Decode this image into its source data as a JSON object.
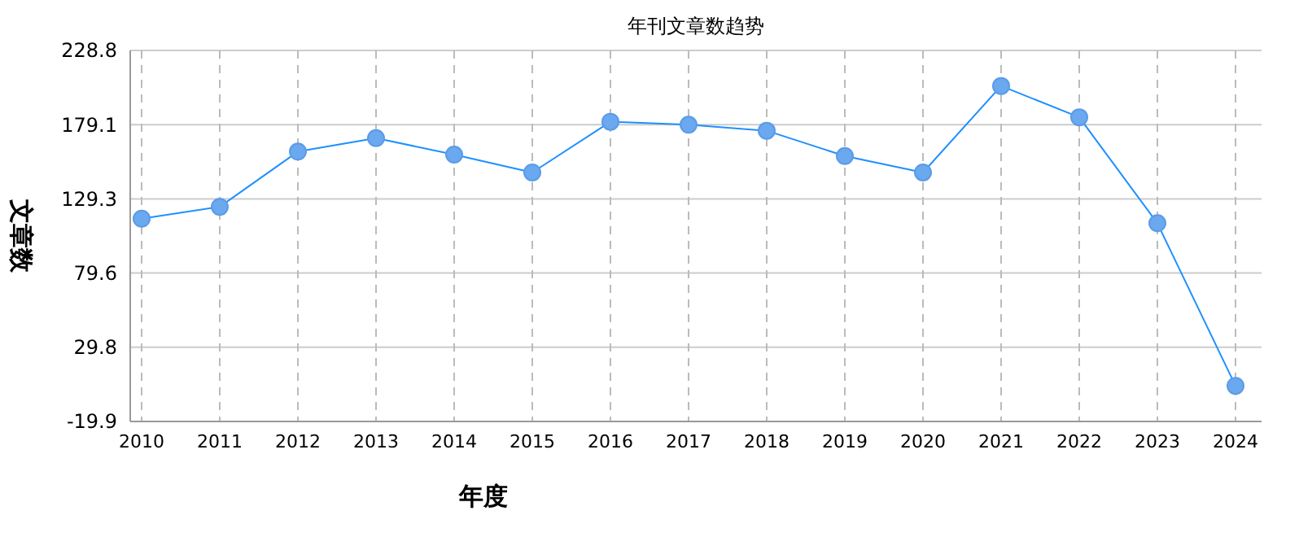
{
  "chart_data": {
    "type": "line",
    "title": "年刊文章数趋势",
    "xlabel": "年度",
    "ylabel": "文章数",
    "categories": [
      "2010",
      "2011",
      "2012",
      "2013",
      "2014",
      "2015",
      "2016",
      "2017",
      "2018",
      "2019",
      "2020",
      "2021",
      "2022",
      "2023",
      "2024"
    ],
    "series": [
      {
        "color": "#1e90ff",
        "values": [
          116,
          124,
          161,
          170,
          159,
          147,
          181,
          179,
          175,
          158,
          147,
          205,
          184,
          113,
          4
        ]
      }
    ],
    "ylim": [
      -19.9,
      228.8
    ],
    "yticks": [
      -19.9,
      29.8,
      79.6,
      129.3,
      179.1,
      228.8
    ],
    "grid": true,
    "marker": "circle",
    "line_style": "solid"
  }
}
